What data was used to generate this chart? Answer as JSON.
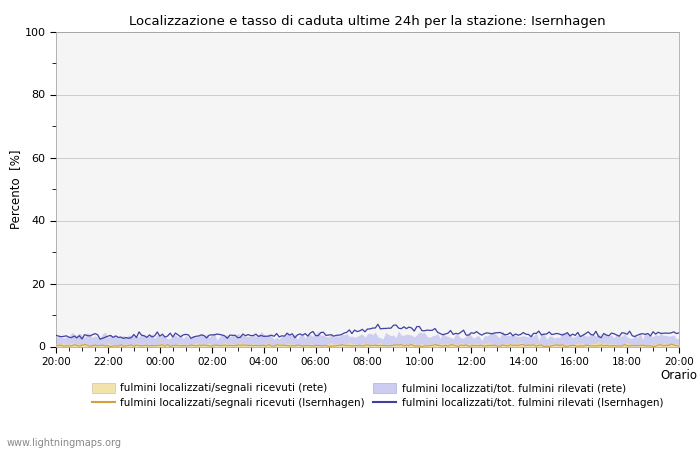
{
  "title": "Localizzazione e tasso di caduta ultime 24h per la stazione: Isernhagen",
  "ylabel": "Percento  [%]",
  "xlim": [
    0,
    24
  ],
  "ylim": [
    0,
    100
  ],
  "yticks": [
    0,
    20,
    40,
    60,
    80,
    100
  ],
  "ytick_minor": [
    10,
    30,
    50,
    70,
    90
  ],
  "xtick_labels": [
    "20:00",
    "22:00",
    "00:00",
    "02:00",
    "04:00",
    "06:00",
    "08:00",
    "10:00",
    "12:00",
    "14:00",
    "16:00",
    "18:00",
    "20:00"
  ],
  "xtick_positions": [
    0,
    2,
    4,
    6,
    8,
    10,
    12,
    14,
    16,
    18,
    20,
    22,
    24
  ],
  "bg_color": "#f5f5f5",
  "grid_color": "#cccccc",
  "fill_rete_color": "#f0e0a0",
  "fill_rete_alpha": 0.85,
  "fill_isern_color": "#c8c8f0",
  "fill_isern_alpha": 0.85,
  "line_rete_color": "#d4a040",
  "line_isern_color": "#4040a0",
  "watermark": "www.lightningmaps.org",
  "legend_labels": [
    "fulmini localizzati/segnali ricevuti (rete)",
    "fulmini localizzati/segnali ricevuti (Isernhagen)",
    "fulmini localizzati/tot. fulmini rilevati (rete)",
    "fulmini localizzati/tot. fulmini rilevati (Isernhagen)"
  ],
  "n_points": 241
}
